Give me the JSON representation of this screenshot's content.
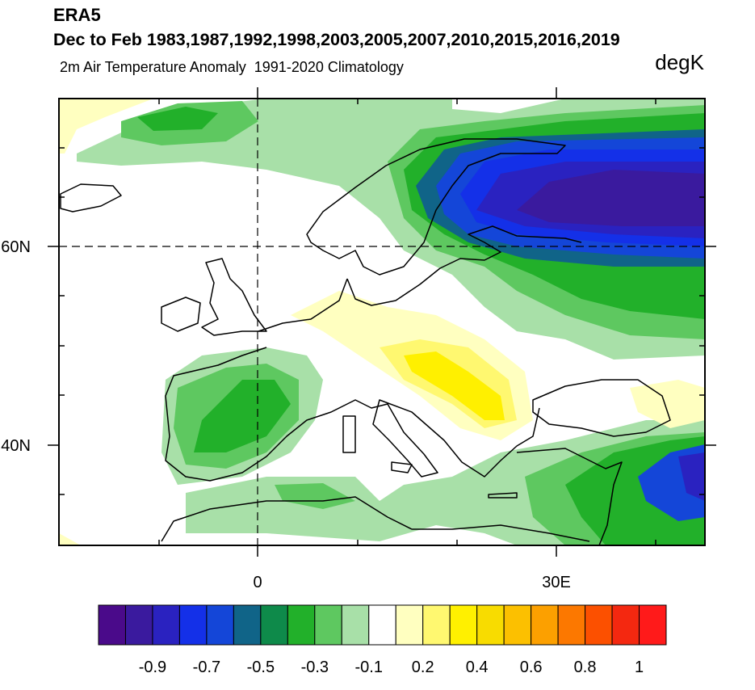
{
  "header": {
    "source": "ERA5",
    "period": "Dec to Feb 1983,1987,1992,1998,2003,2005,2007,2010,2015,2016,2019",
    "subtitle": "2m Air Temperature Anomaly  1991-2020 Climatology",
    "units": "degK"
  },
  "map": {
    "lat_labels": [
      "60N",
      "40N"
    ],
    "lon_labels": [
      "0",
      "30E"
    ]
  },
  "colorbar": {
    "colors": [
      "#4a0a8a",
      "#3a1a9e",
      "#2a22c0",
      "#1430e8",
      "#1446d8",
      "#106488",
      "#0e8a4a",
      "#22b02a",
      "#5ec860",
      "#a8e0a8",
      "#ffffff",
      "#ffffc0",
      "#fff870",
      "#fff000",
      "#f8dc00",
      "#fcc000",
      "#fca000",
      "#fc7800",
      "#fc5000",
      "#f42810",
      "#ff1a1a"
    ],
    "labels": [
      "-0.9",
      "-0.7",
      "-0.5",
      "-0.3",
      "-0.1",
      "0.2",
      "0.4",
      "0.6",
      "0.8",
      "1"
    ]
  }
}
